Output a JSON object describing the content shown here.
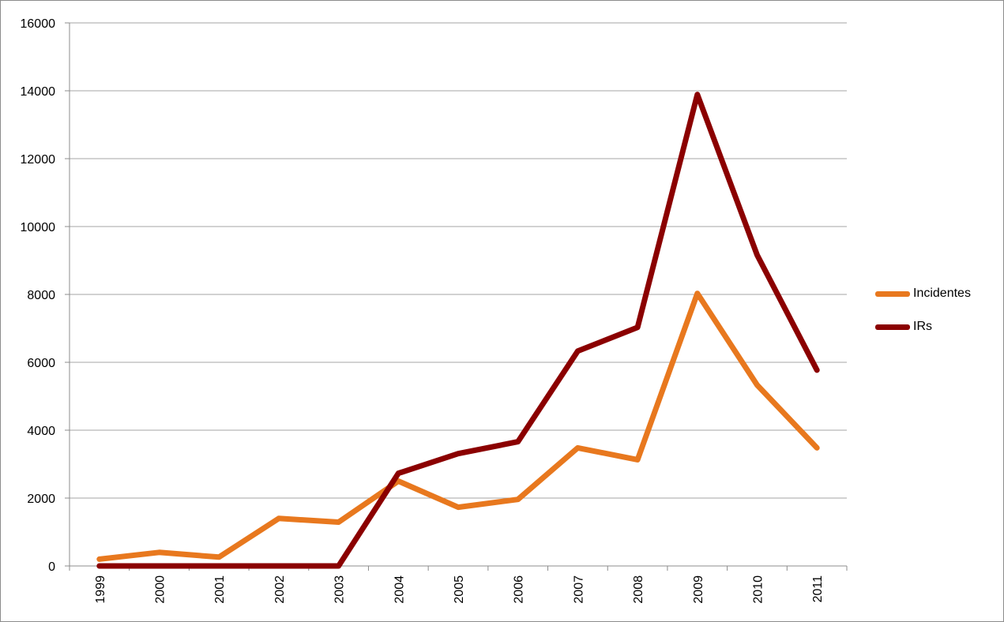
{
  "chart_data": {
    "type": "line",
    "title": "",
    "xlabel": "",
    "ylabel": "",
    "categories": [
      "1999",
      "2000",
      "2001",
      "2002",
      "2003",
      "2004",
      "2005",
      "2006",
      "2007",
      "2008",
      "2009",
      "2010",
      "2011"
    ],
    "ylim": [
      0,
      16000
    ],
    "yticks": [
      "0",
      "2000",
      "4000",
      "6000",
      "8000",
      "10000",
      "12000",
      "14000",
      "16000"
    ],
    "grid": true,
    "legend_position": "right",
    "series": [
      {
        "name": "Incidentes",
        "color": "#e8781e",
        "values": [
          200,
          400,
          260,
          1400,
          1290,
          2500,
          1730,
          1960,
          3480,
          3130,
          8030,
          5330,
          3480
        ]
      },
      {
        "name": "IRs",
        "color": "#8b0000",
        "values": [
          0,
          0,
          0,
          0,
          0,
          2730,
          3310,
          3660,
          6330,
          7030,
          13890,
          9160,
          5770
        ]
      }
    ]
  }
}
